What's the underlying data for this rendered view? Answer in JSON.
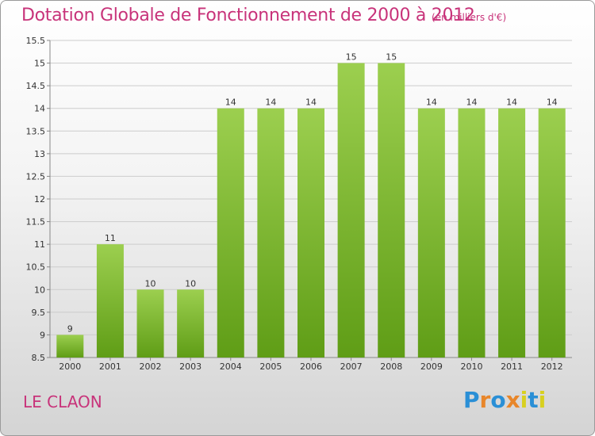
{
  "chart_data": {
    "type": "bar",
    "title": "Dotation Globale de Fonctionnement de 2000 à 2012",
    "subtitle": "(en milliers d'€)",
    "categories": [
      "2000",
      "2001",
      "2002",
      "2003",
      "2004",
      "2005",
      "2006",
      "2007",
      "2008",
      "2009",
      "2010",
      "2011",
      "2012"
    ],
    "values": [
      9,
      11,
      10,
      10,
      14,
      14,
      14,
      15,
      15,
      14,
      14,
      14,
      14
    ],
    "data_labels": [
      "9",
      "11",
      "10",
      "10",
      "14",
      "14",
      "14",
      "15",
      "15",
      "14",
      "14",
      "14",
      "14"
    ],
    "ylim": [
      8.5,
      15.5
    ],
    "yticks": [
      "8.5",
      "9",
      "9.5",
      "10",
      "10.5",
      "11",
      "11.5",
      "12",
      "12.5",
      "13",
      "13.5",
      "14",
      "14.5",
      "15",
      "15.5"
    ],
    "grid": true,
    "bar_color_top": "#9ccf4f",
    "bar_color_bottom": "#5f9d16"
  },
  "commune": "LE CLAON",
  "logo": {
    "letters": [
      "P",
      "r",
      "o",
      "x",
      "i",
      "t",
      "i"
    ],
    "colors": [
      "#2a8fd6",
      "#e8862a",
      "#2a8fd6",
      "#e8862a",
      "#d8d020",
      "#2a8fd6",
      "#d8d020"
    ]
  },
  "colors": {
    "title": "#c8337a",
    "grid": "#cccccc"
  }
}
